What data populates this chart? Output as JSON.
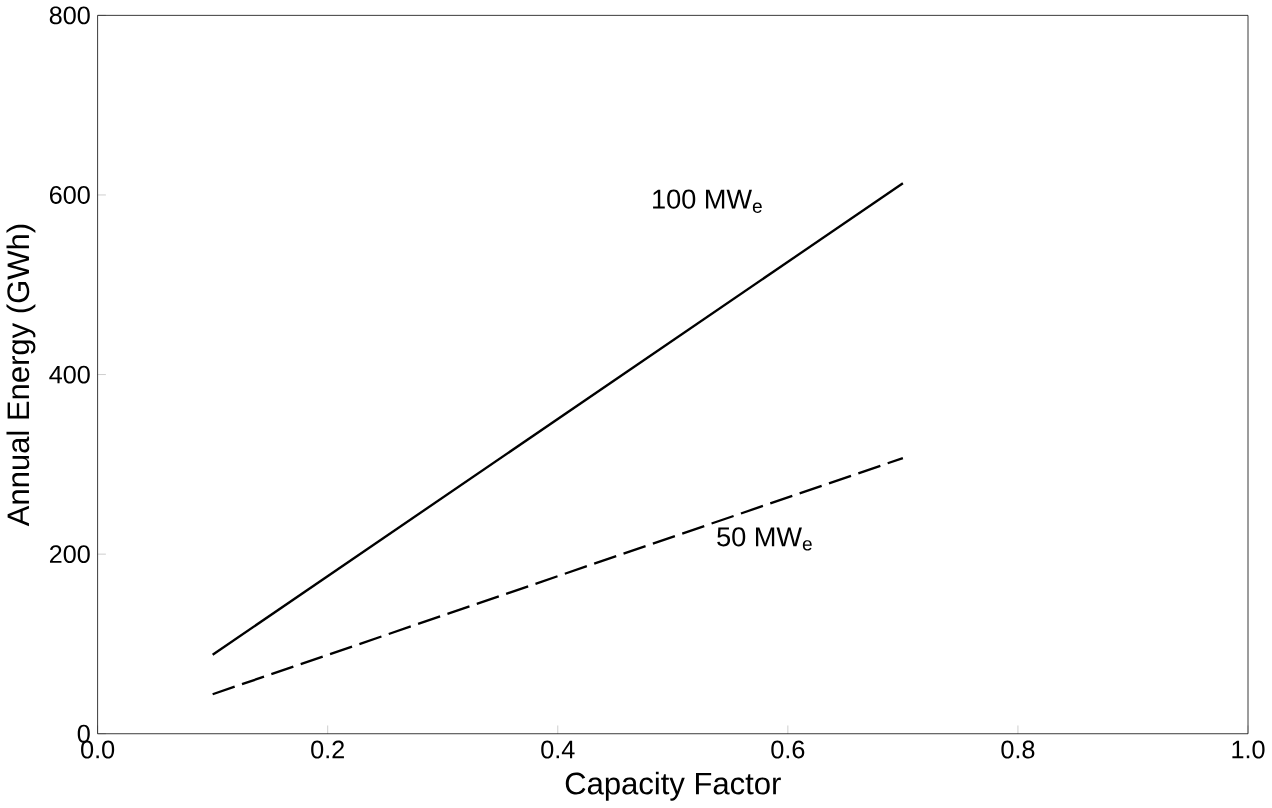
{
  "chart_data": {
    "type": "line",
    "xlabel": "Capacity Factor",
    "ylabel": "Annual Energy (GWh)",
    "xlim": [
      0,
      1
    ],
    "ylim": [
      0,
      800
    ],
    "xticks": [
      {
        "value": 0,
        "label": "0.0"
      },
      {
        "value": 0.2,
        "label": "0.2"
      },
      {
        "value": 0.4,
        "label": "0.4"
      },
      {
        "value": 0.6,
        "label": "0.6"
      },
      {
        "value": 0.8,
        "label": "0.8"
      },
      {
        "value": 1,
        "label": "1.0"
      }
    ],
    "yticks": [
      0,
      200,
      400,
      600,
      800
    ],
    "x": [
      0.1,
      0.7
    ],
    "series": [
      {
        "name": "100 MW$_{e}$",
        "color": "#000000",
        "values": [
          88,
          613
        ],
        "line_style": "solid"
      },
      {
        "name": "50 MW$_{e}$",
        "color": "#000000",
        "values": [
          44,
          307
        ],
        "line_style": "dashed"
      }
    ],
    "marker": "none",
    "grid": false
  }
}
